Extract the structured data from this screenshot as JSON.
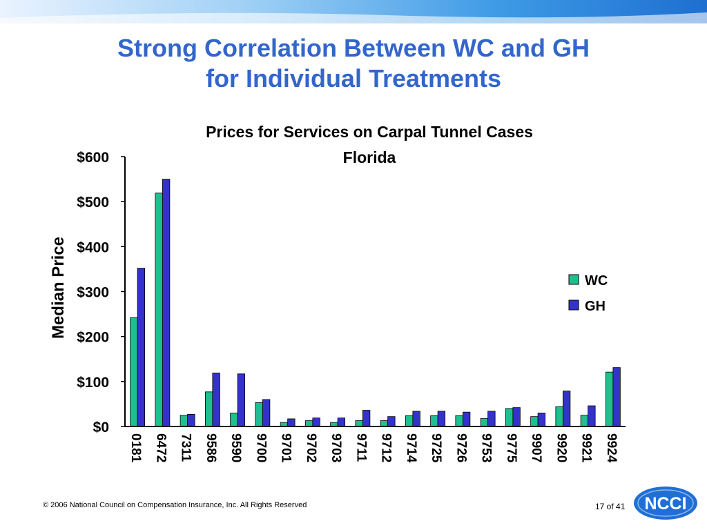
{
  "slide": {
    "title_line1": "Strong Correlation Between WC and GH",
    "title_line2": "for Individual Treatments"
  },
  "footer": {
    "copyright": "© 2006 National Council on Compensation Insurance, Inc. All Rights Reserved",
    "page": "17 of 41",
    "logo_text": "NCCI"
  },
  "colors": {
    "title": "#3366cc",
    "wc": "#1fbf8f",
    "gh": "#3333cc",
    "logo": "#1f6fd6"
  },
  "chart_data": {
    "type": "bar",
    "title": "Prices for Services on Carpal Tunnel Cases",
    "subtitle": "Florida",
    "xlabel": "",
    "ylabel": "Median Price",
    "ylim": [
      0,
      600
    ],
    "yticks": [
      0,
      100,
      200,
      300,
      400,
      500,
      600
    ],
    "ytick_labels": [
      "$0",
      "$100",
      "$200",
      "$300",
      "$400",
      "$500",
      "$600"
    ],
    "grid": false,
    "legend_position": "right",
    "categories": [
      "0181",
      "6472",
      "7311",
      "9586",
      "9590",
      "9700",
      "9701",
      "9702",
      "9703",
      "9711",
      "9712",
      "9714",
      "9725",
      "9726",
      "9753",
      "9775",
      "9907",
      "9920",
      "9921",
      "9924"
    ],
    "series": [
      {
        "name": "WC",
        "color": "#1fbf8f",
        "values": [
          242,
          519,
          25,
          77,
          30,
          53,
          9,
          13,
          9,
          13,
          13,
          24,
          24,
          24,
          18,
          40,
          22,
          44,
          25,
          121
        ]
      },
      {
        "name": "GH",
        "color": "#3333cc",
        "values": [
          352,
          550,
          27,
          119,
          117,
          60,
          17,
          19,
          19,
          36,
          22,
          34,
          34,
          32,
          34,
          42,
          30,
          79,
          46,
          131
        ]
      }
    ]
  }
}
